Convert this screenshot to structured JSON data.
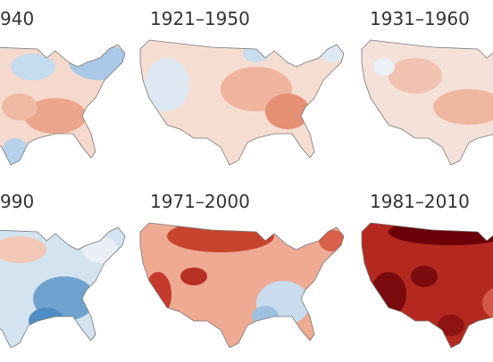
{
  "panels": [
    {
      "label": "940"
    },
    {
      "label": "1921–1950"
    },
    {
      "label": "1931–1960"
    },
    {
      "label": "990"
    },
    {
      "label": "1971–2000"
    },
    {
      "label": "1981–2010"
    }
  ]
}
